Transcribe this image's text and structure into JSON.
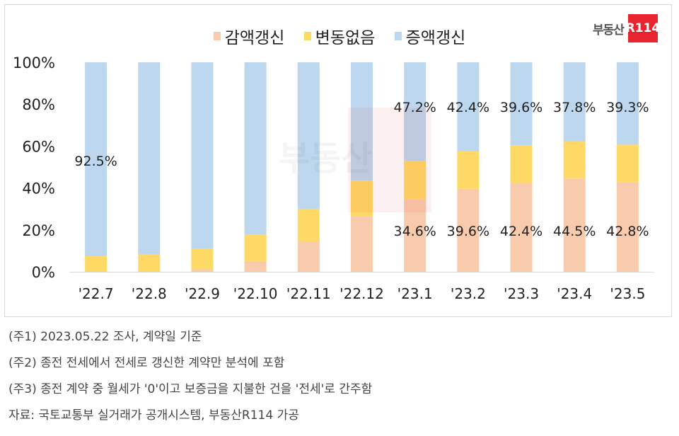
{
  "logo": {
    "text": "부동산",
    "box": "R114"
  },
  "chart_data": {
    "type": "bar",
    "stacked": true,
    "categories": [
      "'22.7",
      "'22.8",
      "'22.9",
      "'22.10",
      "'22.11",
      "'22.12",
      "'23.1",
      "'23.2",
      "'23.3",
      "'23.4",
      "'23.5"
    ],
    "series": [
      {
        "name": "감액갱신",
        "color": "#f8cbad",
        "values": [
          0,
          0,
          1.2,
          5.1,
          14.5,
          26.5,
          34.6,
          39.6,
          42.4,
          44.5,
          42.8
        ],
        "labels": [
          null,
          null,
          null,
          null,
          null,
          null,
          "34.6%",
          "39.6%",
          "42.4%",
          "44.5%",
          "42.8%"
        ]
      },
      {
        "name": "변동없음",
        "color": "#ffd966",
        "values": [
          7.5,
          8.3,
          9.8,
          12.8,
          15.6,
          17.0,
          18.2,
          18.0,
          18.0,
          17.7,
          17.9
        ],
        "labels": [
          null,
          null,
          null,
          null,
          null,
          null,
          null,
          null,
          null,
          null,
          null
        ]
      },
      {
        "name": "증액갱신",
        "color": "#bdd7ee",
        "values": [
          92.5,
          91.7,
          89.0,
          82.1,
          69.9,
          56.5,
          47.2,
          42.4,
          39.6,
          37.8,
          39.3
        ],
        "labels": [
          "92.5%",
          null,
          null,
          null,
          null,
          null,
          "47.2%",
          "42.4%",
          "39.6%",
          "37.8%",
          "39.3%"
        ]
      }
    ],
    "yticks": [
      "0%",
      "20%",
      "40%",
      "60%",
      "80%",
      "100%"
    ],
    "ylim": [
      0,
      100
    ],
    "grid": false,
    "legend": "top"
  },
  "notes": [
    "(주1) 2023.05.22 조사, 계약일 기준",
    "(주2) 종전 전세에서 전세로 갱신한 계약만 분석에 포함",
    "(주3) 종전 계약 중 월세가 '0'이고 보증금을 지불한 건을 '전세'로 간주함",
    "자료: 국토교통부 실거래가 공개시스템, 부동산R114 가공"
  ]
}
